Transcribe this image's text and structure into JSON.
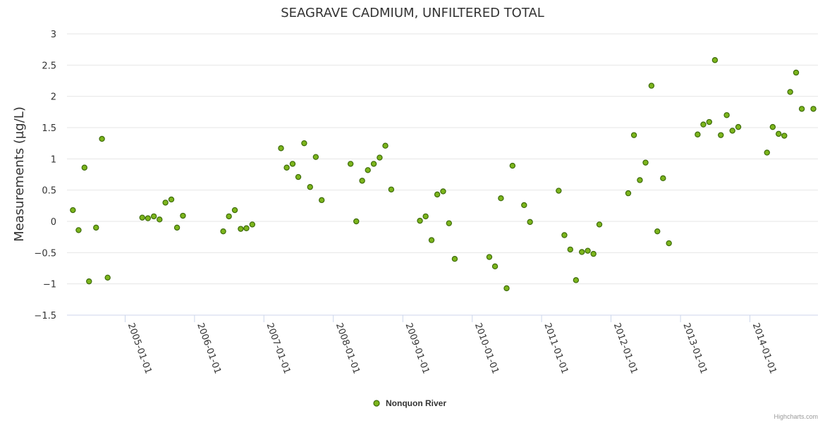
{
  "credits": "Highcharts.com",
  "chart_data": {
    "type": "scatter",
    "title": "SEAGRAVE CADMIUM, UNFILTERED TOTAL",
    "xlabel": "",
    "ylabel": "Measurements (µg/L)",
    "ylim": [
      -1.5,
      3
    ],
    "yticks": [
      -1.5,
      -1,
      -0.5,
      0,
      0.5,
      1,
      1.5,
      2,
      2.5,
      3
    ],
    "ytick_labels": [
      "−1.5",
      "−1",
      "−0.5",
      "0",
      "0.5",
      "1",
      "1.5",
      "2",
      "2.5",
      "3"
    ],
    "xlim": [
      "2004-03-01",
      "2014-12-25"
    ],
    "xticks": [
      "2005-01-01",
      "2006-01-01",
      "2007-01-01",
      "2008-01-01",
      "2009-01-01",
      "2010-01-01",
      "2011-01-01",
      "2012-01-01",
      "2013-01-01",
      "2014-01-01"
    ],
    "grid": "horizontal",
    "legend": "bottom-center",
    "color": "#7cb51c",
    "marker_stroke": "#3d6b0a",
    "series": [
      {
        "name": "Nonquon River",
        "points": [
          [
            "2004-04-01",
            0.18
          ],
          [
            "2004-05-01",
            -0.14
          ],
          [
            "2004-06-01",
            0.86
          ],
          [
            "2004-06-25",
            -0.96
          ],
          [
            "2004-08-01",
            -0.1
          ],
          [
            "2004-09-01",
            1.32
          ],
          [
            "2004-10-01",
            -0.9
          ],
          [
            "2005-04-01",
            0.06
          ],
          [
            "2005-05-01",
            0.05
          ],
          [
            "2005-06-01",
            0.08
          ],
          [
            "2005-07-01",
            0.03
          ],
          [
            "2005-08-01",
            0.3
          ],
          [
            "2005-09-01",
            0.35
          ],
          [
            "2005-10-01",
            -0.1
          ],
          [
            "2005-11-01",
            0.09
          ],
          [
            "2006-06-01",
            -0.16
          ],
          [
            "2006-07-01",
            0.08
          ],
          [
            "2006-08-01",
            0.18
          ],
          [
            "2006-09-01",
            -0.12
          ],
          [
            "2006-10-01",
            -0.11
          ],
          [
            "2006-11-01",
            -0.05
          ],
          [
            "2007-04-01",
            1.17
          ],
          [
            "2007-05-01",
            0.86
          ],
          [
            "2007-06-01",
            0.92
          ],
          [
            "2007-07-01",
            0.71
          ],
          [
            "2007-08-01",
            1.25
          ],
          [
            "2007-09-01",
            0.55
          ],
          [
            "2007-10-01",
            1.03
          ],
          [
            "2007-11-01",
            0.34
          ],
          [
            "2008-04-01",
            0.92
          ],
          [
            "2008-05-01",
            0.0
          ],
          [
            "2008-06-01",
            0.65
          ],
          [
            "2008-07-01",
            0.82
          ],
          [
            "2008-08-01",
            0.92
          ],
          [
            "2008-09-01",
            1.02
          ],
          [
            "2008-10-01",
            1.21
          ],
          [
            "2008-11-01",
            0.51
          ],
          [
            "2009-04-01",
            0.01
          ],
          [
            "2009-05-01",
            0.08
          ],
          [
            "2009-06-01",
            -0.3
          ],
          [
            "2009-07-01",
            0.43
          ],
          [
            "2009-08-01",
            0.48
          ],
          [
            "2009-09-01",
            -0.03
          ],
          [
            "2009-10-01",
            -0.6
          ],
          [
            "2010-04-01",
            -0.57
          ],
          [
            "2010-05-01",
            -0.72
          ],
          [
            "2010-06-01",
            0.37
          ],
          [
            "2010-07-01",
            -1.07
          ],
          [
            "2010-08-01",
            0.89
          ],
          [
            "2010-10-01",
            0.26
          ],
          [
            "2010-11-01",
            -0.01
          ],
          [
            "2011-04-01",
            0.49
          ],
          [
            "2011-05-01",
            -0.22
          ],
          [
            "2011-06-01",
            -0.45
          ],
          [
            "2011-07-01",
            -0.94
          ],
          [
            "2011-08-01",
            -0.49
          ],
          [
            "2011-09-01",
            -0.47
          ],
          [
            "2011-10-01",
            -0.52
          ],
          [
            "2011-11-01",
            -0.05
          ],
          [
            "2012-04-01",
            0.45
          ],
          [
            "2012-05-01",
            1.38
          ],
          [
            "2012-06-01",
            0.66
          ],
          [
            "2012-07-01",
            0.94
          ],
          [
            "2012-08-01",
            2.17
          ],
          [
            "2012-09-01",
            -0.16
          ],
          [
            "2012-10-01",
            0.69
          ],
          [
            "2012-11-01",
            -0.35
          ],
          [
            "2013-04-01",
            1.39
          ],
          [
            "2013-05-01",
            1.55
          ],
          [
            "2013-06-01",
            1.59
          ],
          [
            "2013-07-01",
            2.58
          ],
          [
            "2013-08-01",
            1.38
          ],
          [
            "2013-09-01",
            1.7
          ],
          [
            "2013-10-01",
            1.45
          ],
          [
            "2013-11-01",
            1.51
          ],
          [
            "2014-04-01",
            1.1
          ],
          [
            "2014-05-01",
            1.51
          ],
          [
            "2014-06-01",
            1.4
          ],
          [
            "2014-07-01",
            1.37
          ],
          [
            "2014-08-01",
            2.07
          ],
          [
            "2014-09-01",
            2.38
          ],
          [
            "2014-10-01",
            1.8
          ],
          [
            "2014-12-01",
            1.8
          ]
        ]
      }
    ]
  }
}
